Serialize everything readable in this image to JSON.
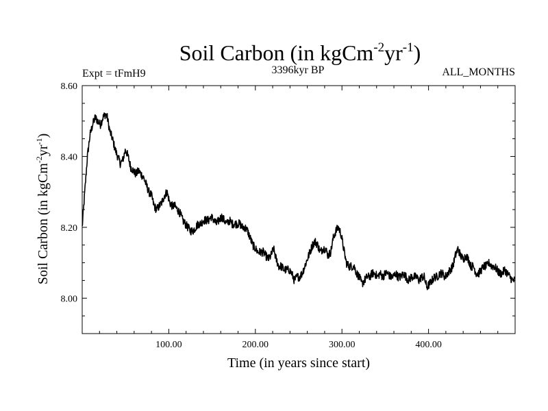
{
  "chart_data": {
    "type": "line",
    "title": {
      "main": "Soil Carbon (in kgCm",
      "sup1": "-2",
      "mid": "yr",
      "sup2": "-1",
      "end": ")"
    },
    "header": {
      "experiment": "Expt = tFmH9",
      "period": "3396kyr BP",
      "months": "ALL_MONTHS"
    },
    "xlabel": "Time (in years since start)",
    "ylabel": {
      "main": "Soil Carbon (in kgCm",
      "sup1": "-2",
      "mid": "yr",
      "sup2": "-1",
      "end": ")"
    },
    "xlim": [
      0,
      500
    ],
    "ylim": [
      7.9,
      8.6
    ],
    "x_ticks": [
      {
        "value": 100,
        "label": "100.00"
      },
      {
        "value": 200,
        "label": "200.00"
      },
      {
        "value": 300,
        "label": "300.00"
      },
      {
        "value": 400,
        "label": "400.00"
      }
    ],
    "y_ticks": [
      {
        "value": 8.0,
        "label": "8.00"
      },
      {
        "value": 8.2,
        "label": "8.20"
      },
      {
        "value": 8.4,
        "label": "8.40"
      },
      {
        "value": 8.6,
        "label": "8.60"
      }
    ],
    "x_minor_step": 20,
    "y_minor_step": 0.05,
    "line_color": "#000000",
    "series": [
      {
        "name": "Soil Carbon",
        "noise_amplitude": 0.012,
        "points": [
          [
            0,
            8.2
          ],
          [
            3,
            8.3
          ],
          [
            6,
            8.4
          ],
          [
            9,
            8.46
          ],
          [
            12,
            8.49
          ],
          [
            15,
            8.51
          ],
          [
            18,
            8.5
          ],
          [
            21,
            8.49
          ],
          [
            24,
            8.51
          ],
          [
            27,
            8.52
          ],
          [
            29,
            8.51
          ],
          [
            32,
            8.47
          ],
          [
            35,
            8.45
          ],
          [
            38,
            8.42
          ],
          [
            41,
            8.4
          ],
          [
            44,
            8.38
          ],
          [
            47,
            8.39
          ],
          [
            50,
            8.42
          ],
          [
            53,
            8.4
          ],
          [
            56,
            8.37
          ],
          [
            59,
            8.36
          ],
          [
            62,
            8.35
          ],
          [
            65,
            8.36
          ],
          [
            68,
            8.35
          ],
          [
            71,
            8.34
          ],
          [
            74,
            8.32
          ],
          [
            77,
            8.3
          ],
          [
            80,
            8.29
          ],
          [
            83,
            8.26
          ],
          [
            86,
            8.25
          ],
          [
            89,
            8.26
          ],
          [
            92,
            8.27
          ],
          [
            95,
            8.29
          ],
          [
            98,
            8.3
          ],
          [
            101,
            8.27
          ],
          [
            104,
            8.26
          ],
          [
            107,
            8.26
          ],
          [
            110,
            8.25
          ],
          [
            113,
            8.24
          ],
          [
            116,
            8.22
          ],
          [
            119,
            8.21
          ],
          [
            122,
            8.2
          ],
          [
            125,
            8.19
          ],
          [
            128,
            8.19
          ],
          [
            131,
            8.2
          ],
          [
            134,
            8.21
          ],
          [
            137,
            8.21
          ],
          [
            140,
            8.22
          ],
          [
            143,
            8.22
          ],
          [
            146,
            8.22
          ],
          [
            149,
            8.23
          ],
          [
            152,
            8.22
          ],
          [
            155,
            8.21
          ],
          [
            158,
            8.22
          ],
          [
            161,
            8.23
          ],
          [
            164,
            8.22
          ],
          [
            167,
            8.21
          ],
          [
            170,
            8.22
          ],
          [
            173,
            8.21
          ],
          [
            176,
            8.21
          ],
          [
            179,
            8.21
          ],
          [
            182,
            8.21
          ],
          [
            185,
            8.2
          ],
          [
            188,
            8.2
          ],
          [
            191,
            8.19
          ],
          [
            194,
            8.17
          ],
          [
            197,
            8.15
          ],
          [
            200,
            8.14
          ],
          [
            203,
            8.13
          ],
          [
            206,
            8.13
          ],
          [
            209,
            8.13
          ],
          [
            212,
            8.12
          ],
          [
            215,
            8.11
          ],
          [
            218,
            8.12
          ],
          [
            221,
            8.14
          ],
          [
            224,
            8.11
          ],
          [
            227,
            8.09
          ],
          [
            230,
            8.09
          ],
          [
            233,
            8.08
          ],
          [
            236,
            8.08
          ],
          [
            239,
            8.08
          ],
          [
            242,
            8.07
          ],
          [
            245,
            8.05
          ],
          [
            248,
            8.06
          ],
          [
            251,
            8.06
          ],
          [
            254,
            8.07
          ],
          [
            257,
            8.09
          ],
          [
            260,
            8.11
          ],
          [
            263,
            8.13
          ],
          [
            266,
            8.15
          ],
          [
            269,
            8.16
          ],
          [
            272,
            8.15
          ],
          [
            275,
            8.13
          ],
          [
            278,
            8.14
          ],
          [
            281,
            8.14
          ],
          [
            284,
            8.12
          ],
          [
            287,
            8.13
          ],
          [
            290,
            8.17
          ],
          [
            293,
            8.19
          ],
          [
            296,
            8.2
          ],
          [
            299,
            8.18
          ],
          [
            302,
            8.14
          ],
          [
            305,
            8.1
          ],
          [
            308,
            8.09
          ],
          [
            311,
            8.09
          ],
          [
            314,
            8.09
          ],
          [
            317,
            8.07
          ],
          [
            320,
            8.06
          ],
          [
            323,
            8.04
          ],
          [
            326,
            8.05
          ],
          [
            329,
            8.06
          ],
          [
            332,
            8.06
          ],
          [
            335,
            8.07
          ],
          [
            338,
            8.07
          ],
          [
            341,
            8.06
          ],
          [
            344,
            8.07
          ],
          [
            347,
            8.06
          ],
          [
            350,
            8.07
          ],
          [
            353,
            8.07
          ],
          [
            356,
            8.06
          ],
          [
            359,
            8.06
          ],
          [
            362,
            8.07
          ],
          [
            365,
            8.06
          ],
          [
            368,
            8.06
          ],
          [
            371,
            8.07
          ],
          [
            374,
            8.06
          ],
          [
            377,
            8.05
          ],
          [
            380,
            8.06
          ],
          [
            383,
            8.06
          ],
          [
            386,
            8.06
          ],
          [
            389,
            8.05
          ],
          [
            392,
            8.06
          ],
          [
            395,
            8.06
          ],
          [
            398,
            8.03
          ],
          [
            401,
            8.04
          ],
          [
            404,
            8.05
          ],
          [
            407,
            8.06
          ],
          [
            410,
            8.06
          ],
          [
            413,
            8.07
          ],
          [
            416,
            8.07
          ],
          [
            419,
            8.06
          ],
          [
            422,
            8.07
          ],
          [
            425,
            8.08
          ],
          [
            428,
            8.09
          ],
          [
            431,
            8.12
          ],
          [
            434,
            8.14
          ],
          [
            437,
            8.12
          ],
          [
            440,
            8.11
          ],
          [
            443,
            8.12
          ],
          [
            446,
            8.11
          ],
          [
            449,
            8.09
          ],
          [
            452,
            8.09
          ],
          [
            455,
            8.07
          ],
          [
            458,
            8.07
          ],
          [
            461,
            8.08
          ],
          [
            464,
            8.09
          ],
          [
            467,
            8.09
          ],
          [
            470,
            8.1
          ],
          [
            473,
            8.09
          ],
          [
            476,
            8.09
          ],
          [
            479,
            8.08
          ],
          [
            482,
            8.07
          ],
          [
            485,
            8.07
          ],
          [
            488,
            8.08
          ],
          [
            491,
            8.07
          ],
          [
            494,
            8.06
          ],
          [
            497,
            8.05
          ],
          [
            500,
            8.05
          ]
        ]
      }
    ]
  }
}
